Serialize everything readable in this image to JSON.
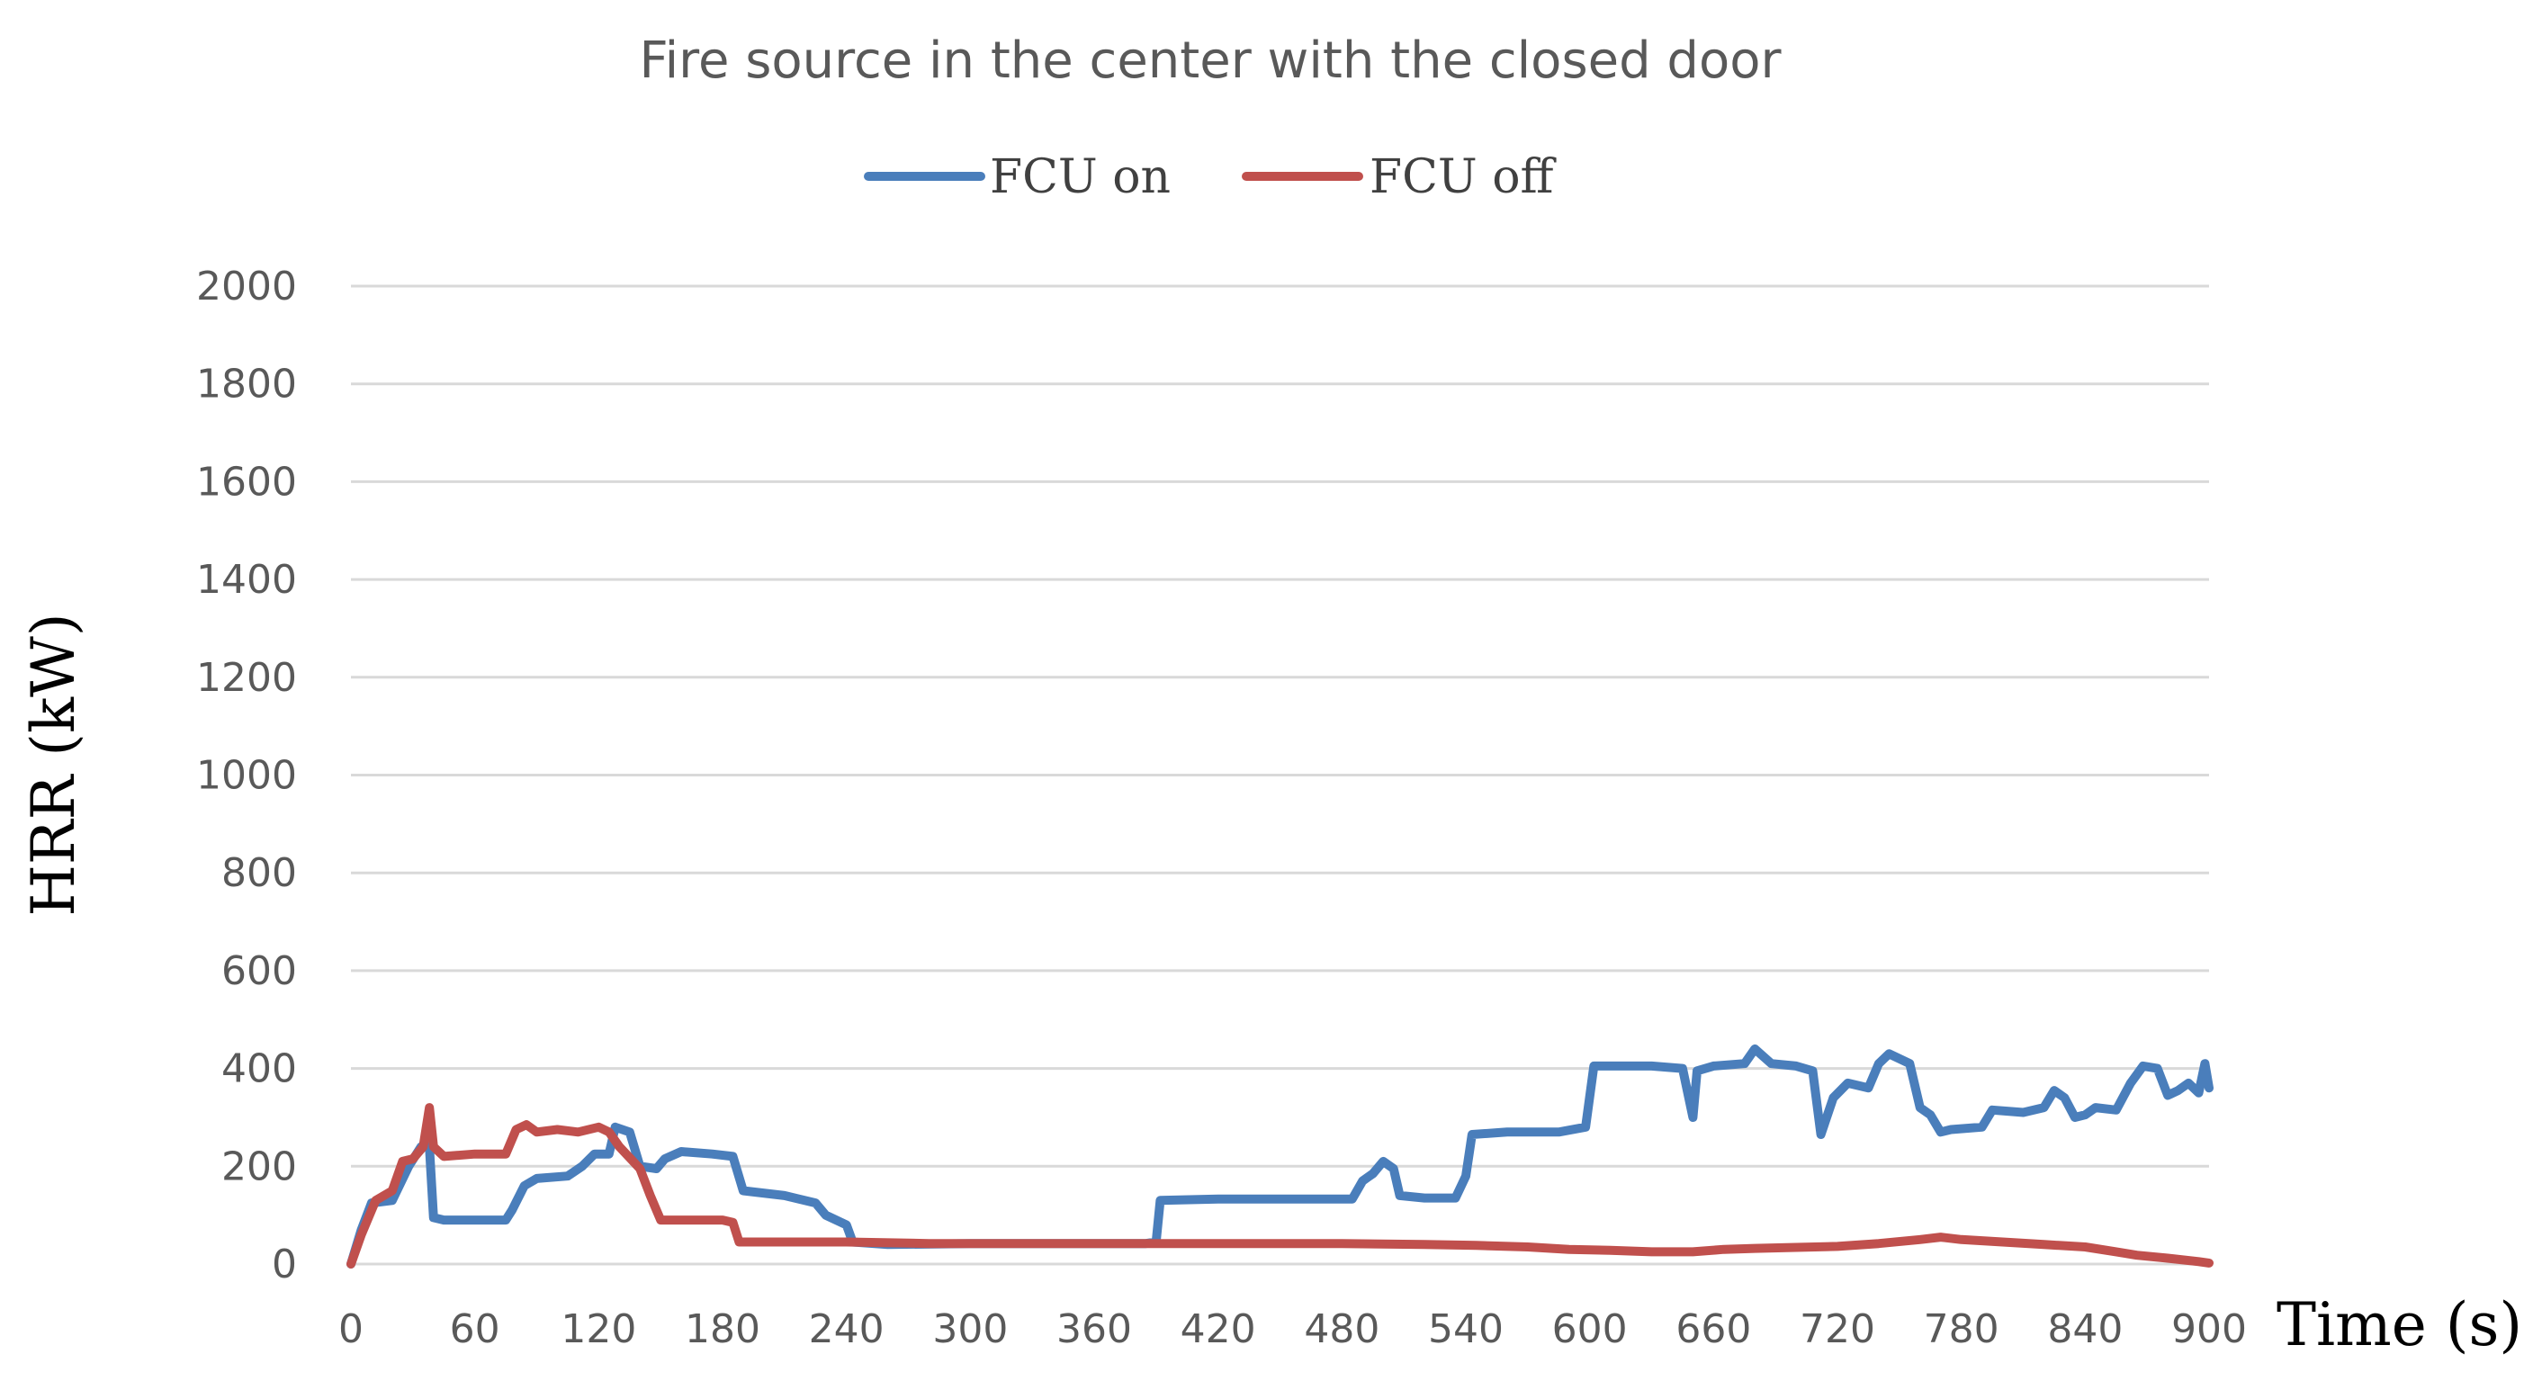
{
  "chart_data": {
    "type": "line",
    "title": "Fire source in the center with the closed door",
    "xlabel": "Time (s)",
    "ylabel": "HRR  (kW)",
    "xlim": [
      0,
      900
    ],
    "ylim": [
      0,
      2000
    ],
    "x_ticks": [
      "0",
      "60",
      "120",
      "180",
      "240",
      "300",
      "360",
      "420",
      "480",
      "540",
      "600",
      "660",
      "720",
      "780",
      "840",
      "900"
    ],
    "y_ticks": [
      "0",
      "200",
      "400",
      "600",
      "800",
      "1000",
      "1200",
      "1400",
      "1600",
      "1800",
      "2000"
    ],
    "grid": "horizontal",
    "legend_position": "top",
    "series": [
      {
        "name": "FCU on",
        "color": "#4a7ebb",
        "points": [
          [
            0,
            0
          ],
          [
            5,
            70
          ],
          [
            10,
            125
          ],
          [
            20,
            130
          ],
          [
            28,
            200
          ],
          [
            34,
            240
          ],
          [
            38,
            240
          ],
          [
            40,
            95
          ],
          [
            45,
            90
          ],
          [
            60,
            90
          ],
          [
            75,
            90
          ],
          [
            78,
            110
          ],
          [
            84,
            160
          ],
          [
            90,
            175
          ],
          [
            105,
            180
          ],
          [
            112,
            200
          ],
          [
            118,
            225
          ],
          [
            125,
            225
          ],
          [
            128,
            280
          ],
          [
            135,
            270
          ],
          [
            140,
            200
          ],
          [
            148,
            195
          ],
          [
            152,
            215
          ],
          [
            160,
            230
          ],
          [
            175,
            225
          ],
          [
            185,
            220
          ],
          [
            190,
            150
          ],
          [
            210,
            140
          ],
          [
            225,
            125
          ],
          [
            230,
            100
          ],
          [
            240,
            80
          ],
          [
            243,
            45
          ],
          [
            260,
            40
          ],
          [
            300,
            42
          ],
          [
            330,
            42
          ],
          [
            360,
            42
          ],
          [
            385,
            42
          ],
          [
            390,
            45
          ],
          [
            392,
            130
          ],
          [
            420,
            133
          ],
          [
            460,
            133
          ],
          [
            485,
            133
          ],
          [
            490,
            170
          ],
          [
            495,
            185
          ],
          [
            500,
            210
          ],
          [
            505,
            195
          ],
          [
            508,
            140
          ],
          [
            520,
            135
          ],
          [
            535,
            135
          ],
          [
            540,
            180
          ],
          [
            543,
            265
          ],
          [
            560,
            270
          ],
          [
            585,
            270
          ],
          [
            598,
            280
          ],
          [
            602,
            405
          ],
          [
            630,
            405
          ],
          [
            645,
            400
          ],
          [
            650,
            300
          ],
          [
            652,
            395
          ],
          [
            660,
            405
          ],
          [
            675,
            410
          ],
          [
            680,
            440
          ],
          [
            688,
            410
          ],
          [
            700,
            405
          ],
          [
            708,
            395
          ],
          [
            712,
            265
          ],
          [
            718,
            340
          ],
          [
            725,
            370
          ],
          [
            735,
            360
          ],
          [
            740,
            410
          ],
          [
            745,
            430
          ],
          [
            755,
            410
          ],
          [
            760,
            320
          ],
          [
            765,
            305
          ],
          [
            770,
            270
          ],
          [
            775,
            275
          ],
          [
            790,
            280
          ],
          [
            795,
            315
          ],
          [
            810,
            310
          ],
          [
            820,
            320
          ],
          [
            825,
            355
          ],
          [
            830,
            340
          ],
          [
            835,
            300
          ],
          [
            840,
            305
          ],
          [
            845,
            320
          ],
          [
            855,
            315
          ],
          [
            862,
            370
          ],
          [
            868,
            405
          ],
          [
            875,
            400
          ],
          [
            880,
            345
          ],
          [
            885,
            355
          ],
          [
            890,
            370
          ],
          [
            895,
            350
          ],
          [
            898,
            410
          ],
          [
            900,
            360
          ]
        ]
      },
      {
        "name": "FCU off",
        "color": "#c0504d",
        "points": [
          [
            0,
            0
          ],
          [
            5,
            60
          ],
          [
            12,
            130
          ],
          [
            20,
            150
          ],
          [
            25,
            210
          ],
          [
            30,
            215
          ],
          [
            35,
            240
          ],
          [
            38,
            320
          ],
          [
            40,
            240
          ],
          [
            45,
            220
          ],
          [
            60,
            225
          ],
          [
            75,
            225
          ],
          [
            80,
            275
          ],
          [
            85,
            285
          ],
          [
            90,
            270
          ],
          [
            100,
            275
          ],
          [
            110,
            270
          ],
          [
            120,
            280
          ],
          [
            125,
            270
          ],
          [
            130,
            240
          ],
          [
            140,
            195
          ],
          [
            145,
            140
          ],
          [
            150,
            90
          ],
          [
            165,
            90
          ],
          [
            180,
            90
          ],
          [
            185,
            85
          ],
          [
            188,
            45
          ],
          [
            200,
            45
          ],
          [
            240,
            45
          ],
          [
            280,
            42
          ],
          [
            320,
            42
          ],
          [
            360,
            42
          ],
          [
            400,
            42
          ],
          [
            440,
            42
          ],
          [
            480,
            42
          ],
          [
            520,
            40
          ],
          [
            545,
            38
          ],
          [
            570,
            35
          ],
          [
            590,
            30
          ],
          [
            610,
            28
          ],
          [
            630,
            25
          ],
          [
            650,
            25
          ],
          [
            665,
            30
          ],
          [
            680,
            32
          ],
          [
            700,
            34
          ],
          [
            720,
            36
          ],
          [
            740,
            42
          ],
          [
            760,
            50
          ],
          [
            770,
            55
          ],
          [
            780,
            50
          ],
          [
            800,
            45
          ],
          [
            820,
            40
          ],
          [
            840,
            35
          ],
          [
            855,
            25
          ],
          [
            865,
            18
          ],
          [
            880,
            12
          ],
          [
            895,
            5
          ],
          [
            900,
            2
          ]
        ]
      }
    ]
  }
}
